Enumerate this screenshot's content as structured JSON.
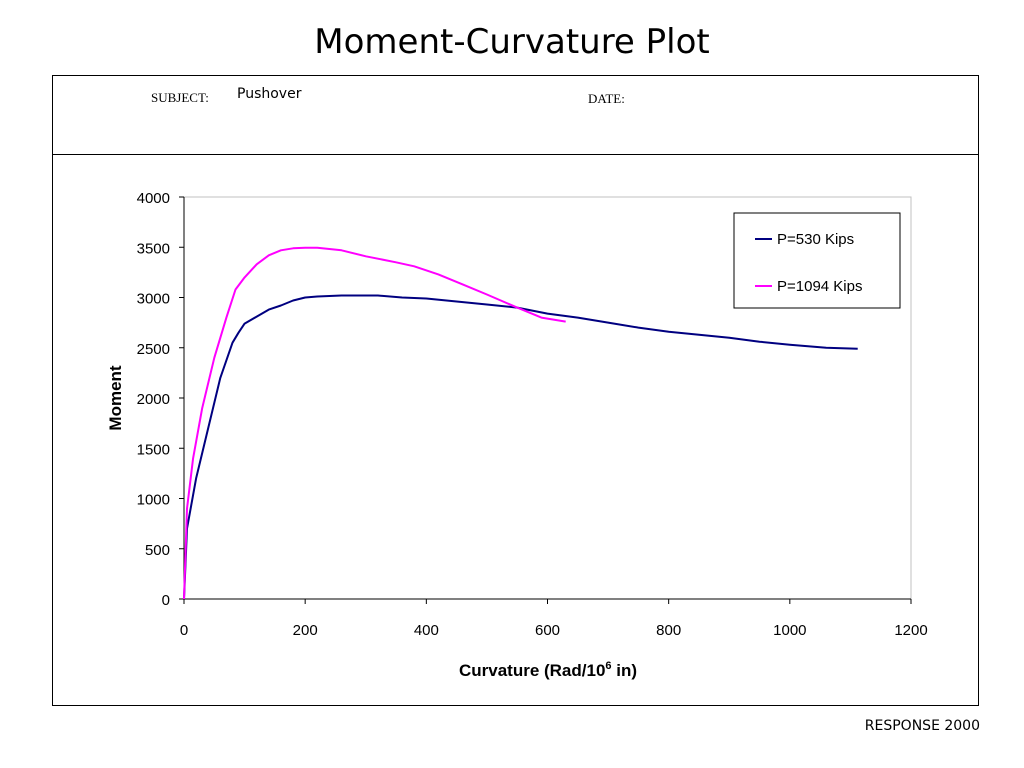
{
  "slide": {
    "title": "Moment-Curvature Plot",
    "footer": "RESPONSE 2000"
  },
  "form": {
    "subject_label": "SUBJECT:",
    "subject_value": "Pushover",
    "date_label": "DATE:"
  },
  "chart_data": {
    "type": "line",
    "xlabel_main": "Curvature (Rad/10",
    "xlabel_sup": "6",
    "xlabel_end": " in)",
    "ylabel": "Moment",
    "xlim": [
      0,
      1200
    ],
    "ylim": [
      0,
      4000
    ],
    "xticks": [
      0,
      200,
      400,
      600,
      800,
      1000,
      1200
    ],
    "yticks": [
      0,
      500,
      1000,
      1500,
      2000,
      2500,
      3000,
      3500,
      4000
    ],
    "grid": false,
    "legend_position": "top-right",
    "series": [
      {
        "name": "P=530 Kips",
        "color": "#000080",
        "points": [
          [
            0,
            0
          ],
          [
            5,
            700
          ],
          [
            20,
            1200
          ],
          [
            40,
            1700
          ],
          [
            60,
            2200
          ],
          [
            80,
            2550
          ],
          [
            90,
            2650
          ],
          [
            100,
            2740
          ],
          [
            120,
            2810
          ],
          [
            140,
            2880
          ],
          [
            160,
            2920
          ],
          [
            180,
            2970
          ],
          [
            200,
            3000
          ],
          [
            220,
            3010
          ],
          [
            260,
            3020
          ],
          [
            320,
            3020
          ],
          [
            360,
            3000
          ],
          [
            400,
            2990
          ],
          [
            450,
            2960
          ],
          [
            500,
            2930
          ],
          [
            550,
            2900
          ],
          [
            600,
            2840
          ],
          [
            650,
            2800
          ],
          [
            700,
            2750
          ],
          [
            750,
            2700
          ],
          [
            800,
            2660
          ],
          [
            850,
            2630
          ],
          [
            900,
            2600
          ],
          [
            950,
            2560
          ],
          [
            1000,
            2530
          ],
          [
            1060,
            2500
          ],
          [
            1112,
            2490
          ]
        ]
      },
      {
        "name": "P=1094 Kips",
        "color": "#FF00FF",
        "points": [
          [
            0,
            0
          ],
          [
            5,
            900
          ],
          [
            15,
            1400
          ],
          [
            30,
            1900
          ],
          [
            50,
            2400
          ],
          [
            70,
            2800
          ],
          [
            85,
            3080
          ],
          [
            100,
            3200
          ],
          [
            120,
            3330
          ],
          [
            140,
            3420
          ],
          [
            160,
            3470
          ],
          [
            180,
            3490
          ],
          [
            200,
            3495
          ],
          [
            220,
            3495
          ],
          [
            260,
            3470
          ],
          [
            300,
            3410
          ],
          [
            350,
            3350
          ],
          [
            380,
            3310
          ],
          [
            420,
            3230
          ],
          [
            460,
            3130
          ],
          [
            500,
            3030
          ],
          [
            550,
            2900
          ],
          [
            590,
            2800
          ],
          [
            630,
            2760
          ]
        ]
      }
    ]
  }
}
